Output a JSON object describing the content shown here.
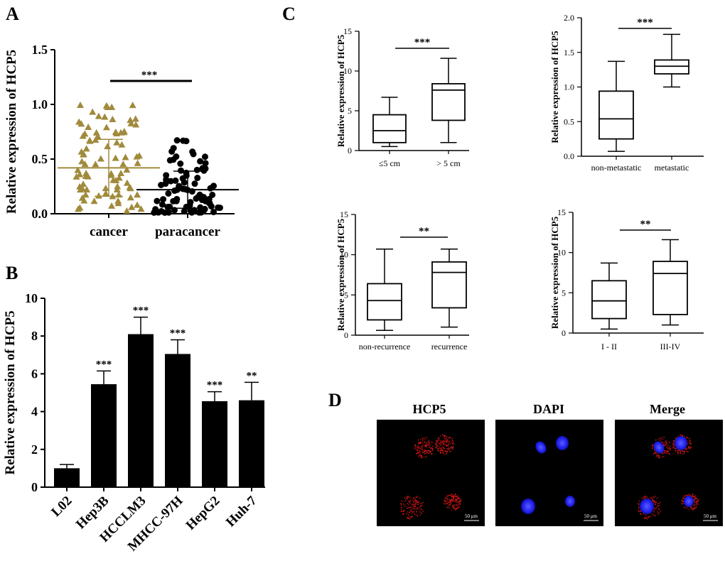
{
  "panels": {
    "A": "A",
    "B": "B",
    "C": "C",
    "D": "D"
  },
  "scatter_scale_bar": "50 μm",
  "chart_data": [
    {
      "id": "A",
      "type": "scatter",
      "title": "",
      "xlabel": "",
      "ylabel": "Relative expression of HCP5",
      "ylim": [
        0,
        1.5
      ],
      "yticks": [
        0.0,
        0.5,
        1.0,
        1.5
      ],
      "tick_labels": [
        "0.0",
        "0.5",
        "1.0",
        "1.5"
      ],
      "categories": [
        "cancer",
        "paracancer"
      ],
      "series": [
        {
          "name": "cancer",
          "marker": "triangle",
          "color": "#a08a3c",
          "mean": 0.42,
          "sd": 0.26
        },
        {
          "name": "paracancer",
          "marker": "circle",
          "color": "#000000",
          "mean": 0.22,
          "sd": 0.17
        }
      ],
      "significance": "***"
    },
    {
      "id": "B",
      "type": "bar",
      "title": "",
      "xlabel": "",
      "ylabel": "Relative expression of HCP5",
      "ylim": [
        0,
        10
      ],
      "yticks": [
        0,
        2,
        4,
        6,
        8,
        10
      ],
      "tick_labels": [
        "0",
        "2",
        "4",
        "6",
        "8",
        "10"
      ],
      "categories": [
        "L02",
        "Hep3B",
        "HCCLM3",
        "MHCC-97H",
        "HepG2",
        "Huh-7"
      ],
      "values": [
        1.0,
        5.45,
        8.1,
        7.05,
        4.55,
        4.6
      ],
      "errors": [
        0.2,
        0.7,
        0.9,
        0.75,
        0.5,
        0.95
      ],
      "significance": [
        "",
        "***",
        "***",
        "***",
        "***",
        "**"
      ]
    },
    {
      "id": "C1",
      "type": "box",
      "ylabel": "Relative expression of HCP5",
      "ylim": [
        0,
        15
      ],
      "yticks": [
        0,
        5,
        10,
        15
      ],
      "tick_labels": [
        "0",
        "5",
        "10",
        "15"
      ],
      "categories": [
        "≤5 cm",
        "> 5 cm"
      ],
      "boxes": [
        {
          "min": 0.5,
          "q1": 1.0,
          "median": 2.5,
          "q3": 4.5,
          "max": 6.7
        },
        {
          "min": 1.0,
          "q1": 3.8,
          "median": 7.6,
          "q3": 8.4,
          "max": 11.6
        }
      ],
      "significance": "***"
    },
    {
      "id": "C2",
      "type": "box",
      "ylabel": "Relative expression of HCP5",
      "ylim": [
        0,
        2.0
      ],
      "yticks": [
        0.0,
        0.5,
        1.0,
        1.5,
        2.0
      ],
      "tick_labels": [
        "0.0",
        "0.5",
        "1.0",
        "1.5",
        "2.0"
      ],
      "categories": [
        "non-metastatic",
        "metastatic"
      ],
      "boxes": [
        {
          "min": 0.07,
          "q1": 0.25,
          "median": 0.54,
          "q3": 0.94,
          "max": 1.37
        },
        {
          "min": 1.0,
          "q1": 1.19,
          "median": 1.3,
          "q3": 1.39,
          "max": 1.76
        }
      ],
      "significance": "***"
    },
    {
      "id": "C3",
      "type": "box",
      "ylabel": "Relative expression of HCP5",
      "ylim": [
        0,
        15
      ],
      "yticks": [
        0,
        5,
        10,
        15
      ],
      "tick_labels": [
        "0",
        "5",
        "10",
        "15"
      ],
      "categories": [
        "non-recurrence",
        "recurrence"
      ],
      "boxes": [
        {
          "min": 0.6,
          "q1": 1.9,
          "median": 4.3,
          "q3": 6.4,
          "max": 10.7
        },
        {
          "min": 1.0,
          "q1": 3.4,
          "median": 7.8,
          "q3": 9.1,
          "max": 10.7
        }
      ],
      "significance": "**"
    },
    {
      "id": "C4",
      "type": "box",
      "ylabel": "Relative expression of HCP5",
      "ylim": [
        0,
        15
      ],
      "yticks": [
        0,
        5,
        10,
        15
      ],
      "tick_labels": [
        "0",
        "5",
        "10",
        "15"
      ],
      "categories": [
        "I - II",
        "III-IV"
      ],
      "boxes": [
        {
          "min": 0.5,
          "q1": 1.8,
          "median": 4.0,
          "q3": 6.5,
          "max": 8.7
        },
        {
          "min": 1.0,
          "q1": 2.3,
          "median": 7.4,
          "q3": 8.9,
          "max": 11.6
        }
      ],
      "significance": "**"
    }
  ],
  "fluorescence": {
    "titles": [
      "HCP5",
      "DAPI",
      "Merge"
    ],
    "scale_bar_label": "50 μm"
  }
}
